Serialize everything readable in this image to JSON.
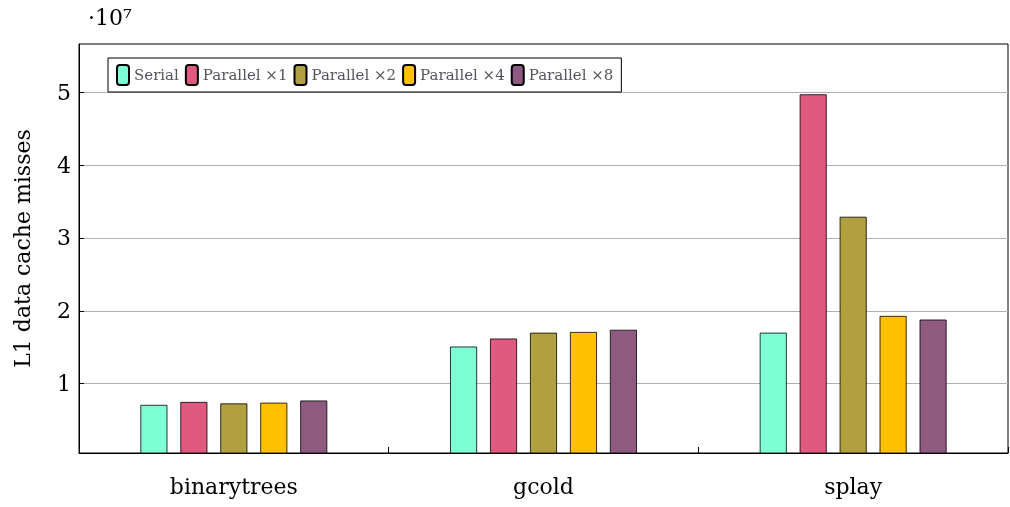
{
  "chart_data": {
    "type": "bar",
    "ylabel": "L1 data cache misses",
    "annotations": [
      "·10⁷"
    ],
    "categories": [
      "binarytrees",
      "gcold",
      "splay"
    ],
    "series": [
      {
        "name": "Serial",
        "color": "#7fffd4",
        "values": [
          0.71,
          1.51,
          1.7
        ]
      },
      {
        "name": "Parallel ×1",
        "color": "#e05a80",
        "values": [
          0.75,
          1.62,
          4.97
        ]
      },
      {
        "name": "Parallel ×2",
        "color": "#b0a040",
        "values": [
          0.73,
          1.7,
          3.29
        ]
      },
      {
        "name": "Parallel ×4",
        "color": "#ffc000",
        "values": [
          0.74,
          1.71,
          1.93
        ]
      },
      {
        "name": "Parallel ×8",
        "color": "#8e5a80",
        "values": [
          0.77,
          1.74,
          1.88
        ]
      }
    ],
    "ylim": [
      0.05,
      5.66
    ],
    "yticks": [
      1,
      2,
      3,
      4,
      5
    ],
    "grid": "y",
    "legend": "top left"
  }
}
